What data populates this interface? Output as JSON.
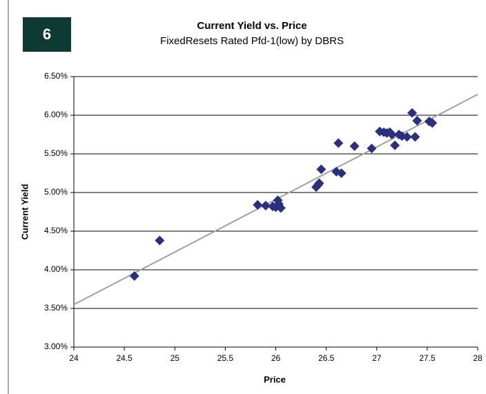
{
  "badge": "6",
  "chart_data": {
    "type": "scatter",
    "title": "Current Yield vs. Price",
    "subtitle": "FixedResets Rated Pfd-1(low) by DBRS",
    "xlabel": "Price",
    "ylabel": "Current Yield",
    "xlim": [
      24,
      28
    ],
    "ylim": [
      3.0,
      6.5
    ],
    "xticks": [
      24,
      24.5,
      25,
      25.5,
      26,
      26.5,
      27,
      27.5,
      28
    ],
    "yticks": [
      {
        "value": 3.0,
        "label": "3.00%"
      },
      {
        "value": 3.5,
        "label": "3.50%"
      },
      {
        "value": 4.0,
        "label": "4.00%"
      },
      {
        "value": 4.5,
        "label": "4.50%"
      },
      {
        "value": 5.0,
        "label": "5.00%"
      },
      {
        "value": 5.5,
        "label": "5.50%"
      },
      {
        "value": 6.0,
        "label": "6.00%"
      },
      {
        "value": 6.5,
        "label": "6.50%"
      }
    ],
    "grid": true,
    "series": [
      {
        "color": "#2b2f7f",
        "x": [
          24.6,
          24.85,
          25.82,
          25.9,
          25.97,
          26.0,
          26.02,
          26.03,
          26.05,
          26.4,
          26.42,
          26.43,
          26.45,
          26.6,
          26.62,
          26.65,
          26.78,
          26.95,
          27.03,
          27.07,
          27.1,
          27.13,
          27.15,
          27.18,
          27.22,
          27.25,
          27.3,
          27.35,
          27.38,
          27.4,
          27.52,
          27.55
        ],
        "values": [
          3.92,
          4.38,
          4.84,
          4.83,
          4.82,
          4.81,
          4.9,
          4.85,
          4.8,
          5.07,
          5.1,
          5.12,
          5.3,
          5.27,
          5.64,
          5.25,
          5.6,
          5.57,
          5.79,
          5.78,
          5.77,
          5.78,
          5.75,
          5.61,
          5.75,
          5.73,
          5.72,
          6.03,
          5.72,
          5.93,
          5.92,
          5.9
        ]
      }
    ],
    "trendline": {
      "color": "#a0a0a0",
      "x": [
        24,
        28
      ],
      "values": [
        3.55,
        6.27
      ]
    }
  }
}
